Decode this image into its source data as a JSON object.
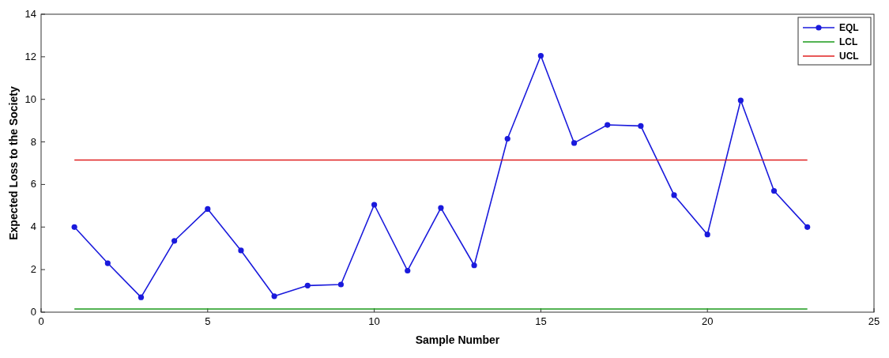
{
  "chart_data": {
    "type": "line",
    "xlabel": "Sample Number",
    "ylabel": "Expected Loss to the Society",
    "x": [
      1,
      2,
      3,
      4,
      5,
      6,
      7,
      8,
      9,
      10,
      11,
      12,
      13,
      14,
      15,
      16,
      17,
      18,
      19,
      20,
      21,
      22,
      23
    ],
    "series": [
      {
        "name": "EQL",
        "color": "#1a1adc",
        "marker": "circle",
        "values": [
          4.0,
          2.3,
          0.7,
          3.35,
          4.85,
          2.9,
          0.75,
          1.25,
          1.3,
          5.05,
          1.95,
          4.9,
          2.2,
          8.15,
          12.05,
          7.95,
          8.8,
          8.75,
          5.5,
          3.65,
          9.95,
          5.7,
          4.0
        ]
      },
      {
        "name": "LCL",
        "color": "#1a9a1a",
        "marker": "none",
        "values": [
          0.15,
          0.15,
          0.15,
          0.15,
          0.15,
          0.15,
          0.15,
          0.15,
          0.15,
          0.15,
          0.15,
          0.15,
          0.15,
          0.15,
          0.15,
          0.15,
          0.15,
          0.15,
          0.15,
          0.15,
          0.15,
          0.15,
          0.15
        ]
      },
      {
        "name": "UCL",
        "color": "#e02020",
        "marker": "none",
        "values": [
          7.15,
          7.15,
          7.15,
          7.15,
          7.15,
          7.15,
          7.15,
          7.15,
          7.15,
          7.15,
          7.15,
          7.15,
          7.15,
          7.15,
          7.15,
          7.15,
          7.15,
          7.15,
          7.15,
          7.15,
          7.15,
          7.15,
          7.15
        ]
      }
    ],
    "xlim": [
      0,
      25
    ],
    "xticks": [
      0,
      5,
      10,
      15,
      20,
      25
    ],
    "ylim": [
      0,
      14
    ],
    "yticks": [
      0,
      2,
      4,
      6,
      8,
      10,
      12,
      14
    ],
    "legend": "top right",
    "grid": false
  }
}
